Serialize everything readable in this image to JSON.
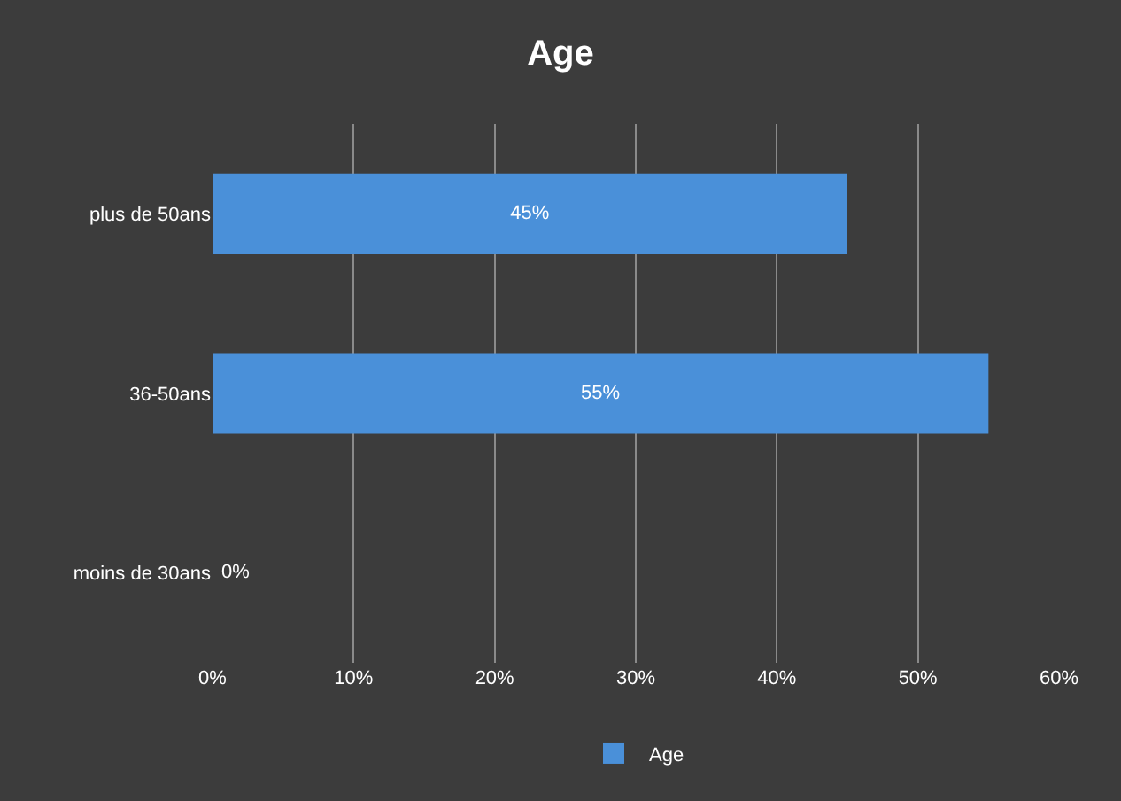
{
  "chart_data": {
    "type": "bar",
    "orientation": "horizontal",
    "title": "Age",
    "categories": [
      "plus de 50ans",
      "36-50ans",
      "moins de 30ans"
    ],
    "series": [
      {
        "name": "Age",
        "color": "#4a90d9",
        "values": [
          45,
          55,
          0
        ],
        "value_labels": [
          "45%",
          "55%",
          "0%"
        ]
      }
    ],
    "xlim": [
      0,
      60
    ],
    "xticks": [
      {
        "value": 0,
        "label": "0%"
      },
      {
        "value": 10,
        "label": "10%"
      },
      {
        "value": 20,
        "label": "20%"
      },
      {
        "value": 30,
        "label": "30%"
      },
      {
        "value": 40,
        "label": "40%"
      },
      {
        "value": 50,
        "label": "50%"
      },
      {
        "value": 60,
        "label": "60%"
      }
    ],
    "grid": "x",
    "legend": "bottom"
  }
}
